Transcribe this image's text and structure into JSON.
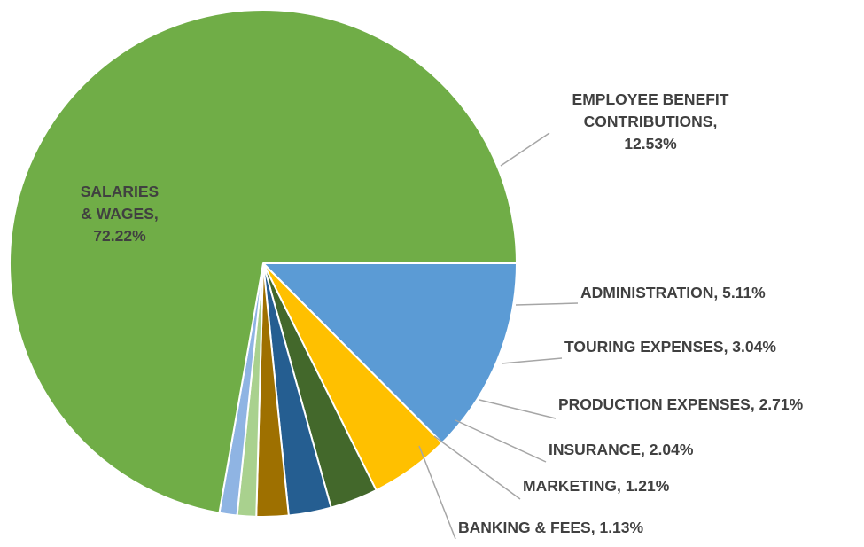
{
  "chart_data": {
    "type": "pie",
    "title": "",
    "start_angle_deg_clockwise_from_top": 90,
    "direction": "clockwise",
    "series": [
      {
        "slices": [
          {
            "label": "EMPLOYEE BENEFIT CONTRIBUTIONS",
            "value": 12.53,
            "value_label": "12.53%",
            "color": "#5B9BD5"
          },
          {
            "label": "ADMINISTRATION",
            "value": 5.11,
            "value_label": "5.11%",
            "color": "#FFC000"
          },
          {
            "label": "TOURING EXPENSES",
            "value": 3.04,
            "value_label": "3.04%",
            "color": "#43682B"
          },
          {
            "label": "PRODUCTION EXPENSES",
            "value": 2.71,
            "value_label": "2.71%",
            "color": "#255E91"
          },
          {
            "label": "INSURANCE",
            "value": 2.04,
            "value_label": "2.04%",
            "color": "#9E7000"
          },
          {
            "label": "MARKETING",
            "value": 1.21,
            "value_label": "1.21%",
            "color": "#A9D18E"
          },
          {
            "label": "BANKING & FEES",
            "value": 1.13,
            "value_label": "1.13%",
            "color": "#8FB4E3"
          },
          {
            "label": "SALARIES & WAGES",
            "value": 72.22,
            "value_label": "72.22%",
            "color": "#70AD47"
          }
        ]
      }
    ],
    "data_labels": [
      {
        "lines": [
          "EMPLOYEE BENEFIT",
          "CONTRIBUTIONS,",
          "12.53%"
        ]
      },
      {
        "lines": [
          "ADMINISTRATION,  5.11%"
        ]
      },
      {
        "lines": [
          "TOURING EXPENSES, 3.04%"
        ]
      },
      {
        "lines": [
          "PRODUCTION EXPENSES, 2.71%"
        ]
      },
      {
        "lines": [
          "INSURANCE, 2.04%"
        ]
      },
      {
        "lines": [
          "MARKETING, 1.21%"
        ]
      },
      {
        "lines": [
          "BANKING & FEES, 1.13%"
        ]
      },
      {
        "lines": [
          "SALARIES",
          "& WAGES,",
          "72.22%"
        ]
      }
    ],
    "leader_line_color": "#A6A6A6",
    "slice_border_color": "#FFFFFF"
  }
}
